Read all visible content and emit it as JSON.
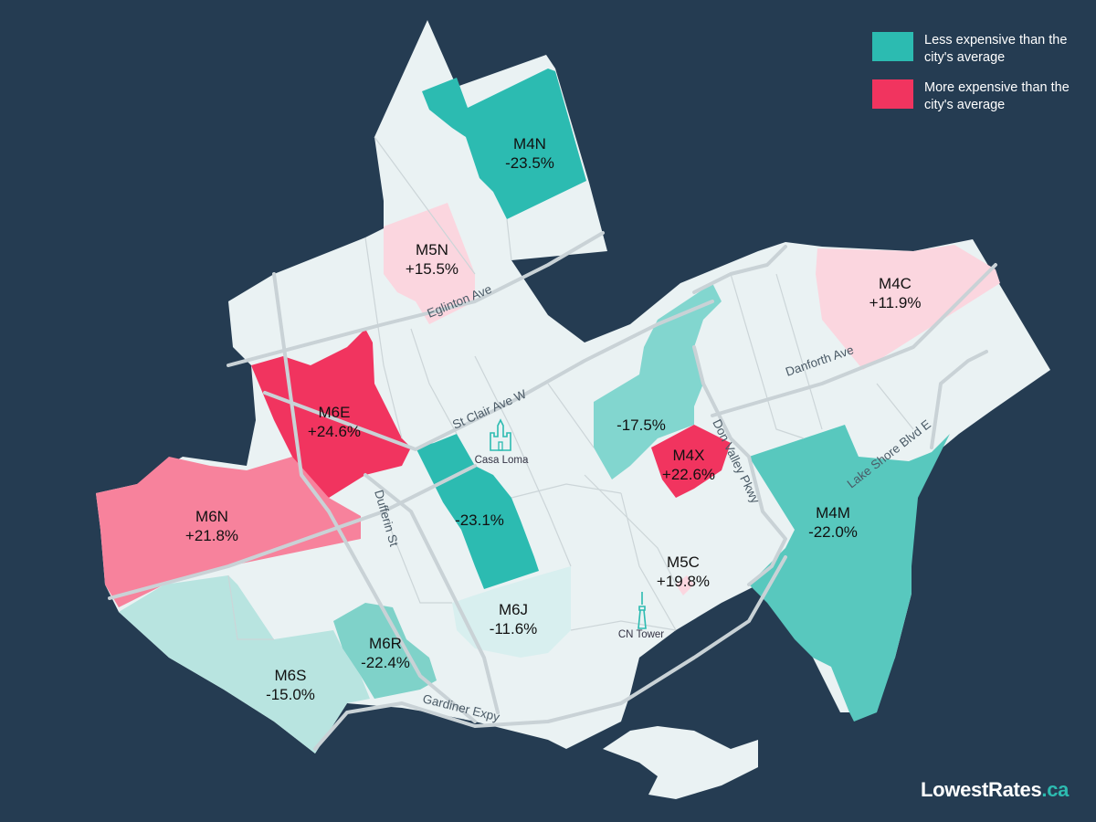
{
  "legend": {
    "less": {
      "label": "Less expensive than the city's average",
      "color": "#2cbbb1"
    },
    "more": {
      "label": "More expensive than the city's average",
      "color": "#f1345f"
    }
  },
  "colors": {
    "water": "#253c52",
    "land": "#eaf2f3",
    "teal_strong": "#2cbbb1",
    "teal_mid": "#82d6cf",
    "teal_light": "#b8e4e0",
    "teal_pale": "#d8efef",
    "pink_strong": "#f1345f",
    "pink_mid": "#f7829c",
    "pink_light": "#fbd6df"
  },
  "regions": [
    {
      "code": "M4N",
      "value": "-23.5%"
    },
    {
      "code": "M5N",
      "value": "+15.5%"
    },
    {
      "code": "M4C",
      "value": "+11.9%"
    },
    {
      "code": "M6E",
      "value": "+24.6%"
    },
    {
      "code": "M6N",
      "value": "+21.8%"
    },
    {
      "code": "",
      "value": "-17.5%"
    },
    {
      "code": "M4X",
      "value": "+22.6%"
    },
    {
      "code": "",
      "value": "-23.1%"
    },
    {
      "code": "M4M",
      "value": "-22.0%"
    },
    {
      "code": "M5C",
      "value": "+19.8%"
    },
    {
      "code": "M6J",
      "value": "-11.6%"
    },
    {
      "code": "M6R",
      "value": "-22.4%"
    },
    {
      "code": "M6S",
      "value": "-15.0%"
    }
  ],
  "streets": {
    "eglinton": "Eglinton Ave",
    "stclair": "St Clair Ave W",
    "danforth": "Danforth Ave",
    "dvp": "Don Valley Pkwy",
    "lakeshore": "Lake Shore Blvd E",
    "dufferin": "Dufferin St",
    "gardiner": "Gardiner Expy"
  },
  "landmarks": {
    "casa_loma": {
      "label": "Casa Loma",
      "icon": "castle-icon"
    },
    "cn_tower": {
      "label": "CN Tower",
      "icon": "tower-icon"
    }
  },
  "brand": {
    "name": "LowestRates",
    "tld": ".ca"
  }
}
